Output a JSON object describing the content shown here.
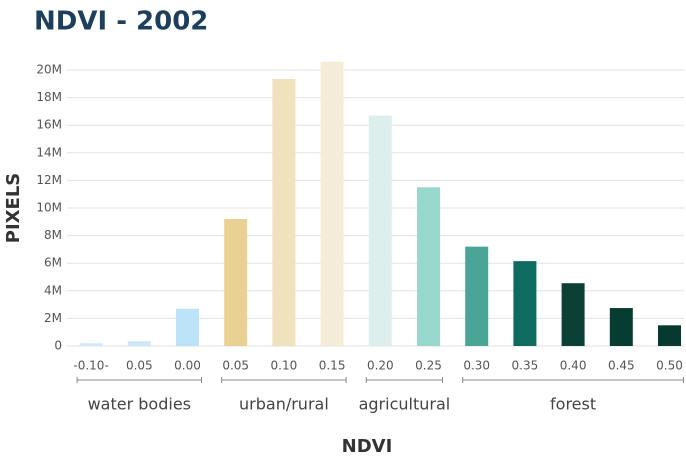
{
  "chart_data": {
    "type": "bar",
    "title": "NDVI - 2002",
    "x_label": "NDVI",
    "y_label": "PIXELS",
    "categories": [
      "-0.10-",
      "0.05",
      "0.00",
      "0.05",
      "0.10",
      "0.15",
      "0.20",
      "0.25",
      "0.30",
      "0.35",
      "0.40",
      "0.45",
      "0.50"
    ],
    "series": [
      {
        "name": "water bodies",
        "colors": [
          "#cfe9f7",
          "#cde8f8",
          "#bde3f9"
        ],
        "values": [
          200000,
          350000,
          2700000,
          null,
          null,
          null,
          null,
          null,
          null,
          null,
          null,
          null,
          null
        ]
      },
      {
        "name": "urban/rural",
        "colors": [
          "#e8d193",
          "#f0e2bc",
          "#f5ecd8"
        ],
        "values": [
          null,
          null,
          null,
          9200000,
          19350000,
          20600000,
          null,
          null,
          null,
          null,
          null,
          null,
          null
        ]
      },
      {
        "name": "agricultural",
        "colors": [
          "#dcefec",
          "#98d7cb"
        ],
        "values": [
          null,
          null,
          null,
          null,
          null,
          null,
          16700000,
          11500000,
          null,
          null,
          null,
          null,
          null
        ]
      },
      {
        "name": "forest",
        "colors": [
          "#4aa597",
          "#0e6b5f",
          "#0c3f35",
          "#063c31",
          "#063a30"
        ],
        "values": [
          null,
          null,
          null,
          null,
          null,
          null,
          null,
          null,
          7200000,
          6150000,
          4550000,
          2750000,
          1500000
        ]
      }
    ],
    "ylim": [
      0,
      20000000
    ],
    "yticks": [
      0,
      {
        "value": 2000000,
        "label": "2M"
      },
      {
        "value": 4000000,
        "label": "4M"
      },
      {
        "value": 6000000,
        "label": "6M"
      },
      {
        "value": 8000000,
        "label": "8M"
      },
      {
        "value": 10000000,
        "label": "10M"
      },
      {
        "value": 12000000,
        "label": "12M"
      },
      {
        "value": 14000000,
        "label": "14M"
      },
      {
        "value": 16000000,
        "label": "16M"
      },
      {
        "value": 18000000,
        "label": "18M"
      },
      {
        "value": 20000000,
        "label": "20M"
      }
    ],
    "grid": true
  }
}
